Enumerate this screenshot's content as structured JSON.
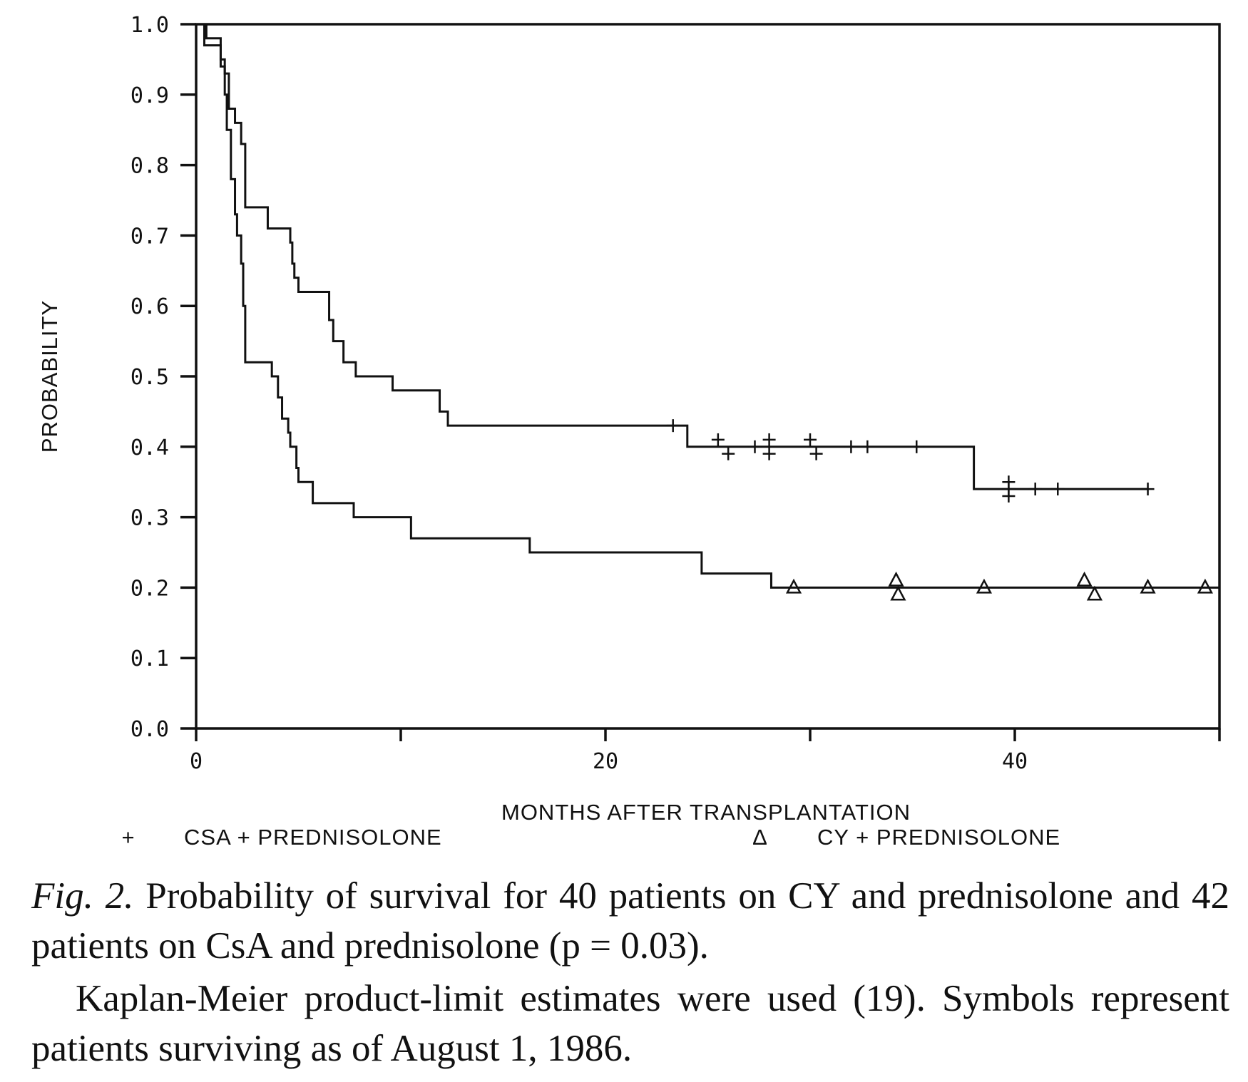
{
  "chart_data": {
    "type": "line",
    "xlabel": "MONTHS AFTER TRANSPLANTATION",
    "ylabel": "PROBABILITY",
    "xlim": [
      0,
      50
    ],
    "ylim": [
      0,
      1.0
    ],
    "x_ticks": [
      0,
      20,
      40
    ],
    "x_tick_labels": [
      "0",
      "20",
      "40"
    ],
    "y_ticks": [
      0.0,
      0.1,
      0.2,
      0.3,
      0.4,
      0.5,
      0.6,
      0.7,
      0.8,
      0.9,
      1.0
    ],
    "y_tick_labels": [
      "0.0",
      "0.1",
      "0.2",
      "0.3",
      "0.4",
      "0.5",
      "0.6",
      "0.7",
      "0.8",
      "0.9",
      "1.0"
    ],
    "legend_placement": "bottom",
    "series": [
      {
        "name": "CSA + PREDNISOLONE",
        "symbol": "+",
        "steps": [
          [
            0,
            1.0
          ],
          [
            0.5,
            0.98
          ],
          [
            1.2,
            0.95
          ],
          [
            1.4,
            0.93
          ],
          [
            1.6,
            0.88
          ],
          [
            1.9,
            0.86
          ],
          [
            2.2,
            0.83
          ],
          [
            2.4,
            0.78
          ],
          [
            2.4,
            0.74
          ],
          [
            3.4,
            0.74
          ],
          [
            3.5,
            0.71
          ],
          [
            4.3,
            0.71
          ],
          [
            4.6,
            0.69
          ],
          [
            4.7,
            0.66
          ],
          [
            4.8,
            0.64
          ],
          [
            5.0,
            0.62
          ],
          [
            6.4,
            0.62
          ],
          [
            6.5,
            0.58
          ],
          [
            6.7,
            0.55
          ],
          [
            7.2,
            0.52
          ],
          [
            7.8,
            0.5
          ],
          [
            9.3,
            0.5
          ],
          [
            9.6,
            0.48
          ],
          [
            11.6,
            0.48
          ],
          [
            11.9,
            0.45
          ],
          [
            12.3,
            0.43
          ],
          [
            23.3,
            0.43
          ],
          [
            24.0,
            0.4
          ],
          [
            38.0,
            0.4
          ],
          [
            38.0,
            0.34
          ],
          [
            46.5,
            0.34
          ]
        ],
        "censored": [
          [
            23.3,
            0.43
          ],
          [
            25.5,
            0.41
          ],
          [
            26.0,
            0.39
          ],
          [
            27.3,
            0.4
          ],
          [
            28.0,
            0.41
          ],
          [
            28.0,
            0.39
          ],
          [
            30.0,
            0.41
          ],
          [
            30.3,
            0.39
          ],
          [
            32.0,
            0.4
          ],
          [
            32.8,
            0.4
          ],
          [
            35.2,
            0.4
          ],
          [
            39.7,
            0.35
          ],
          [
            39.7,
            0.34
          ],
          [
            39.7,
            0.33
          ],
          [
            41.0,
            0.34
          ],
          [
            42.1,
            0.34
          ],
          [
            46.5,
            0.34
          ]
        ]
      },
      {
        "name": "CY + PREDNISOLONE",
        "symbol": "Δ",
        "steps": [
          [
            0,
            1.0
          ],
          [
            0.3,
            1.0
          ],
          [
            0.4,
            0.97
          ],
          [
            1.2,
            0.94
          ],
          [
            1.4,
            0.9
          ],
          [
            1.5,
            0.85
          ],
          [
            1.7,
            0.78
          ],
          [
            1.9,
            0.73
          ],
          [
            2.0,
            0.7
          ],
          [
            2.2,
            0.66
          ],
          [
            2.3,
            0.6
          ],
          [
            2.4,
            0.56
          ],
          [
            2.4,
            0.52
          ],
          [
            3.5,
            0.52
          ],
          [
            3.7,
            0.5
          ],
          [
            4.0,
            0.47
          ],
          [
            4.2,
            0.44
          ],
          [
            4.5,
            0.42
          ],
          [
            4.6,
            0.4
          ],
          [
            4.9,
            0.37
          ],
          [
            5.0,
            0.35
          ],
          [
            5.6,
            0.35
          ],
          [
            5.7,
            0.32
          ],
          [
            7.6,
            0.32
          ],
          [
            7.7,
            0.3
          ],
          [
            10.4,
            0.3
          ],
          [
            10.5,
            0.27
          ],
          [
            16.2,
            0.27
          ],
          [
            16.3,
            0.25
          ],
          [
            24.6,
            0.25
          ],
          [
            24.7,
            0.22
          ],
          [
            28.0,
            0.22
          ],
          [
            28.1,
            0.2
          ],
          [
            50.0,
            0.2
          ]
        ],
        "censored": [
          [
            29.2,
            0.2
          ],
          [
            34.2,
            0.21
          ],
          [
            34.3,
            0.19
          ],
          [
            38.5,
            0.2
          ],
          [
            43.4,
            0.21
          ],
          [
            43.9,
            0.19
          ],
          [
            46.5,
            0.2
          ],
          [
            49.3,
            0.2
          ]
        ]
      }
    ]
  },
  "legend": {
    "csa_symbol": "+",
    "csa_label": "CSA + PREDNISOLONE",
    "cy_symbol": "Δ",
    "cy_label": "CY + PREDNISOLONE"
  },
  "caption": {
    "fig_label": "Fig. 2.",
    "line1": " Probability of survival for 40 patients on CY and prednisolone and 42 patients on CsA and prednisolone (p = 0.03).",
    "line2": "Kaplan-Meier product-limit estimates were used (19). Symbols represent patients surviving as of August 1, 1986."
  }
}
